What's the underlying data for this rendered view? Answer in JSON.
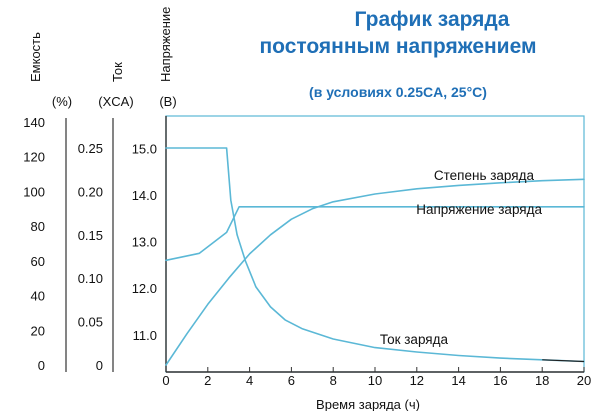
{
  "chart_data": {
    "type": "line",
    "title_line1": "График заряда",
    "title_line2": "постоянным напряжением",
    "subtitle": "(в условиях 0.25CA, 25°C)",
    "xlabel": "Время заряда (ч)",
    "xlim": [
      0,
      20
    ],
    "x_ticks": [
      "0",
      "2",
      "4",
      "6",
      "8",
      "10",
      "12",
      "14",
      "16",
      "18",
      "20"
    ],
    "axes": {
      "capacity": {
        "name": "Емкость",
        "unit": "(%)",
        "range": [
          0,
          140
        ],
        "ticks": [
          "0",
          "20",
          "40",
          "60",
          "80",
          "100",
          "120",
          "140"
        ]
      },
      "current": {
        "name": "Ток",
        "unit": "(XCA)",
        "range": [
          0,
          0.28
        ],
        "ticks": [
          "0",
          "0.05",
          "0.10",
          "0.15",
          "0.20",
          "0.25"
        ]
      },
      "voltage": {
        "name": "Напряжение",
        "unit": "(B)",
        "range": [
          10.2,
          15.7
        ],
        "ticks": [
          "11.0",
          "12.0",
          "13.0",
          "14.0",
          "15.0"
        ]
      }
    },
    "series": [
      {
        "name": "Степень заряда",
        "axis": "capacity",
        "color": "#5bb8d6",
        "x": [
          0,
          1,
          2,
          3,
          4,
          5,
          6,
          7,
          8,
          10,
          12,
          14,
          16,
          18,
          20
        ],
        "y": [
          0,
          18,
          35,
          50,
          64,
          75,
          84,
          90,
          94,
          98.5,
          101.5,
          103.5,
          105,
          106.2,
          107
        ]
      },
      {
        "name": "Напряжение заряда",
        "axis": "voltage",
        "color": "#5bb8d6",
        "x": [
          0,
          1.6,
          2.9,
          3.5,
          20
        ],
        "y": [
          12.6,
          12.75,
          13.2,
          13.75,
          13.75
        ]
      },
      {
        "name": "Ток заряда",
        "axis": "current",
        "color": "#5bb8d6",
        "x": [
          0,
          2.9,
          3.1,
          3.4,
          3.8,
          4.3,
          5,
          5.7,
          6.5,
          8,
          10,
          12,
          14,
          16,
          18,
          20
        ],
        "y": [
          0.25,
          0.25,
          0.19,
          0.15,
          0.12,
          0.09,
          0.067,
          0.052,
          0.042,
          0.03,
          0.02,
          0.015,
          0.011,
          0.008,
          0.006,
          0.004
        ]
      }
    ],
    "annotations": {
      "soc": "Степень заряда",
      "voltage": "Напряжение заряда",
      "current": "Ток заряда"
    },
    "grid": false,
    "axis_color": "#333333",
    "frame_color": "#5bb8d6"
  }
}
